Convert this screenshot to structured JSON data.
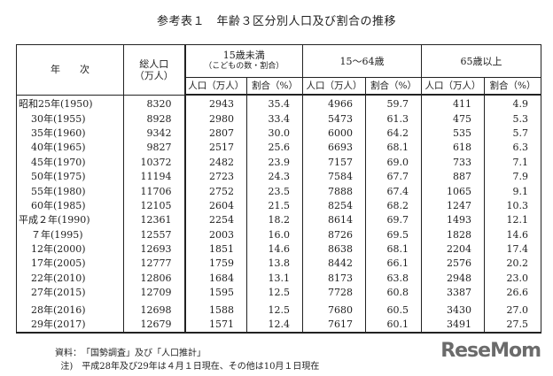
{
  "title": "参考表１　年齢３区分別人口及び割合の推移",
  "header": {
    "year": "年　　次",
    "total": "総人口\n（万人）",
    "group1": "15歳未満",
    "group1_sub": "（こどもの数・割合）",
    "group2": "15～64歳",
    "group3": "65歳以上",
    "pop": "人口（万人）",
    "ratio": "割合（%）"
  },
  "rows": [
    [
      "昭和25年(1950)",
      "8320",
      "2943",
      "35.4",
      "4966",
      "59.7",
      "411",
      "4.9"
    ],
    [
      "    30年(1955)",
      "8928",
      "2980",
      "33.4",
      "5473",
      "61.3",
      "475",
      "5.3"
    ],
    [
      "    35年(1960)",
      "9342",
      "2807",
      "30.0",
      "6000",
      "64.2",
      "535",
      "5.7"
    ],
    [
      "    40年(1965)",
      "9827",
      "2517",
      "25.6",
      "6693",
      "68.1",
      "618",
      "6.3"
    ],
    [
      "    45年(1970)",
      "10372",
      "2482",
      "23.9",
      "7157",
      "69.0",
      "733",
      "7.1"
    ],
    [
      "    50年(1975)",
      "11194",
      "2723",
      "24.3",
      "7584",
      "67.7",
      "887",
      "7.9"
    ],
    [
      "    55年(1980)",
      "11706",
      "2752",
      "23.5",
      "7888",
      "67.4",
      "1065",
      "9.1"
    ],
    [
      "    60年(1985)",
      "12105",
      "2604",
      "21.5",
      "8254",
      "68.2",
      "1247",
      "10.3"
    ],
    [
      "平成２年(1990)",
      "12361",
      "2254",
      "18.2",
      "8614",
      "69.7",
      "1493",
      "12.1"
    ],
    [
      "    ７年(1995)",
      "12557",
      "2003",
      "16.0",
      "8726",
      "69.5",
      "1828",
      "14.6"
    ],
    [
      "    12年(2000)",
      "12693",
      "1851",
      "14.6",
      "8638",
      "68.1",
      "2204",
      "17.4"
    ],
    [
      "    17年(2005)",
      "12777",
      "1759",
      "13.8",
      "8442",
      "66.1",
      "2576",
      "20.2"
    ],
    [
      "    22年(2010)",
      "12806",
      "1684",
      "13.1",
      "8173",
      "63.8",
      "2948",
      "23.0"
    ],
    [
      "    27年(2015)",
      "12709",
      "1595",
      "12.5",
      "7728",
      "60.8",
      "3387",
      "26.6"
    ],
    [
      "    28年(2016)",
      "12698",
      "1588",
      "12.5",
      "7680",
      "60.5",
      "3430",
      "27.0"
    ],
    [
      "    29年(2017)",
      "12679",
      "1571",
      "12.4",
      "7617",
      "60.1",
      "3491",
      "27.5"
    ]
  ],
  "notes": {
    "source": "資料：　「国勢調査」及び「人口推計」",
    "note": "  注)　平成28年及び29年は４月１日現在、その他は10月１日現在"
  },
  "logo": "ReseMom"
}
